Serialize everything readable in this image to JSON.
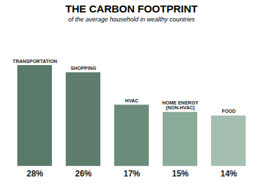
{
  "chart_data": {
    "type": "bar",
    "title": "THE CARBON FOOTPRINT",
    "subtitle": "of the average household in wealthy countries",
    "categories": [
      "TRANSPORTATION",
      "SHOPPING",
      "HVAC",
      "HOME ENERGY\n(NON-HVAC)",
      "FOOD"
    ],
    "values": [
      28,
      26,
      17,
      15,
      14
    ],
    "value_labels": [
      "28%",
      "26%",
      "17%",
      "15%",
      "14%"
    ],
    "data_labels": true,
    "colors": [
      "#597a69",
      "#5e7d6c",
      "#6b8c7b",
      "#8aab97",
      "#a4bfb0"
    ],
    "ylim": [
      -6,
      38
    ],
    "tick_labels": false,
    "grid": false
  }
}
